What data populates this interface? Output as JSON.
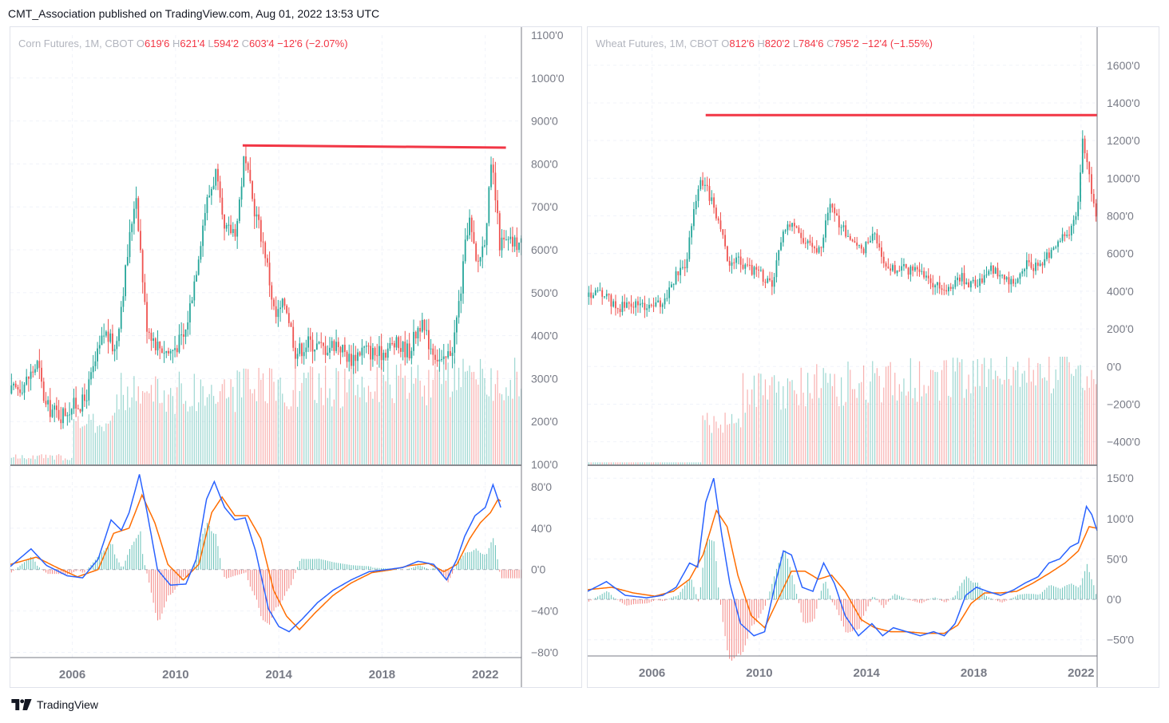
{
  "header": {
    "text": "CMT_Association published on TradingView.com, Aug 01, 2022 13:53 UTC"
  },
  "footer": {
    "brand": "TradingView"
  },
  "colors": {
    "up": "#26a69a",
    "down": "#ef5350",
    "resistance": "#f23645",
    "macd": "#2962ff",
    "signal": "#ff6d00",
    "grid": "#f0f3fa",
    "axis": "#787b86"
  },
  "chart_data": [
    {
      "type": "candlestick",
      "symbol": "Corn Futures, 1M, CBOT",
      "legend": {
        "title": "Corn Futures, 1M, CBOT",
        "o_label": "O",
        "o": "619'6",
        "h_label": "H",
        "h": "621'4",
        "l_label": "L",
        "l": "594'2",
        "c_label": "C",
        "c": "603'4",
        "change": "−12'6 (−2.07%)"
      },
      "price_axis_labels": [
        "1100'0",
        "1000'0",
        "900'0",
        "800'0",
        "700'0",
        "600'0",
        "500'0",
        "400'0",
        "300'0",
        "200'0",
        "100'0"
      ],
      "price_axis_values": [
        1100,
        1000,
        900,
        800,
        700,
        600,
        500,
        400,
        300,
        200,
        100
      ],
      "price_range": [
        100,
        1100
      ],
      "x_axis_labels": [
        "2006",
        "2010",
        "2014",
        "2018",
        "2022"
      ],
      "x_axis_values": [
        2006,
        2010,
        2014,
        2018,
        2022
      ],
      "x_range": [
        2003.6,
        2023.4
      ],
      "resistance_line": {
        "x_start": 2012.6,
        "x_end": 2022.8,
        "y_start": 843,
        "y_end": 838
      },
      "price_anchors": [
        [
          2003.6,
          265
        ],
        [
          2004.2,
          290
        ],
        [
          2004.7,
          335
        ],
        [
          2005.0,
          235
        ],
        [
          2005.6,
          215
        ],
        [
          2006.0,
          235
        ],
        [
          2006.5,
          245
        ],
        [
          2006.9,
          330
        ],
        [
          2007.3,
          410
        ],
        [
          2007.7,
          365
        ],
        [
          2008.1,
          550
        ],
        [
          2008.5,
          740
        ],
        [
          2008.9,
          430
        ],
        [
          2009.3,
          380
        ],
        [
          2009.8,
          360
        ],
        [
          2010.4,
          400
        ],
        [
          2010.8,
          540
        ],
        [
          2011.2,
          700
        ],
        [
          2011.6,
          780
        ],
        [
          2011.9,
          640
        ],
        [
          2012.4,
          650
        ],
        [
          2012.7,
          815
        ],
        [
          2013.0,
          720
        ],
        [
          2013.5,
          600
        ],
        [
          2013.9,
          440
        ],
        [
          2014.3,
          480
        ],
        [
          2014.7,
          360
        ],
        [
          2015.2,
          385
        ],
        [
          2015.8,
          370
        ],
        [
          2016.3,
          385
        ],
        [
          2016.8,
          345
        ],
        [
          2017.3,
          370
        ],
        [
          2017.9,
          355
        ],
        [
          2018.5,
          380
        ],
        [
          2019.1,
          365
        ],
        [
          2019.5,
          430
        ],
        [
          2019.9,
          380
        ],
        [
          2020.4,
          330
        ],
        [
          2020.8,
          380
        ],
        [
          2021.1,
          510
        ],
        [
          2021.4,
          680
        ],
        [
          2021.7,
          560
        ],
        [
          2022.0,
          620
        ],
        [
          2022.3,
          800
        ],
        [
          2022.6,
          615
        ]
      ],
      "oscillator": {
        "axis_labels": [
          "80'0",
          "40'0",
          "0'0",
          "−40'0",
          "−80'0"
        ],
        "axis_values": [
          80,
          40,
          0,
          -40,
          -80
        ],
        "range": [
          -85,
          100
        ],
        "macd_anchors": [
          [
            2003.6,
            3
          ],
          [
            2004.4,
            20
          ],
          [
            2005.0,
            4
          ],
          [
            2005.8,
            -6
          ],
          [
            2006.4,
            -8
          ],
          [
            2007.0,
            10
          ],
          [
            2007.5,
            48
          ],
          [
            2007.9,
            38
          ],
          [
            2008.2,
            55
          ],
          [
            2008.6,
            92
          ],
          [
            2008.9,
            55
          ],
          [
            2009.3,
            0
          ],
          [
            2009.8,
            -15
          ],
          [
            2010.4,
            -14
          ],
          [
            2010.8,
            10
          ],
          [
            2011.2,
            68
          ],
          [
            2011.5,
            85
          ],
          [
            2011.9,
            60
          ],
          [
            2012.3,
            48
          ],
          [
            2012.7,
            50
          ],
          [
            2013.1,
            18
          ],
          [
            2013.6,
            -38
          ],
          [
            2014.0,
            -55
          ],
          [
            2014.4,
            -60
          ],
          [
            2014.9,
            -48
          ],
          [
            2015.5,
            -32
          ],
          [
            2016.1,
            -20
          ],
          [
            2016.8,
            -10
          ],
          [
            2017.5,
            -2
          ],
          [
            2018.2,
            0
          ],
          [
            2018.8,
            2
          ],
          [
            2019.4,
            8
          ],
          [
            2020.0,
            5
          ],
          [
            2020.5,
            -10
          ],
          [
            2020.9,
            10
          ],
          [
            2021.2,
            32
          ],
          [
            2021.6,
            52
          ],
          [
            2022.0,
            60
          ],
          [
            2022.3,
            82
          ],
          [
            2022.6,
            60
          ]
        ],
        "signal_anchors": [
          [
            2003.6,
            5
          ],
          [
            2004.6,
            12
          ],
          [
            2005.4,
            2
          ],
          [
            2006.2,
            -7
          ],
          [
            2007.0,
            0
          ],
          [
            2007.6,
            35
          ],
          [
            2008.2,
            40
          ],
          [
            2008.7,
            72
          ],
          [
            2009.2,
            45
          ],
          [
            2009.7,
            5
          ],
          [
            2010.3,
            -10
          ],
          [
            2010.9,
            5
          ],
          [
            2011.4,
            55
          ],
          [
            2011.8,
            70
          ],
          [
            2012.3,
            52
          ],
          [
            2012.8,
            52
          ],
          [
            2013.3,
            30
          ],
          [
            2013.8,
            -20
          ],
          [
            2014.3,
            -45
          ],
          [
            2014.8,
            -58
          ],
          [
            2015.4,
            -42
          ],
          [
            2016.1,
            -25
          ],
          [
            2016.8,
            -13
          ],
          [
            2017.6,
            -3
          ],
          [
            2018.4,
            0
          ],
          [
            2019.1,
            4
          ],
          [
            2019.8,
            6
          ],
          [
            2020.4,
            -2
          ],
          [
            2020.9,
            5
          ],
          [
            2021.4,
            30
          ],
          [
            2021.8,
            45
          ],
          [
            2022.2,
            55
          ],
          [
            2022.5,
            68
          ],
          [
            2022.6,
            66
          ]
        ]
      }
    },
    {
      "type": "candlestick",
      "symbol": "Wheat Futures, 1M, CBOT",
      "legend": {
        "title": "Wheat Futures, 1M, CBOT",
        "o_label": "O",
        "o": "812'6",
        "h_label": "H",
        "h": "820'2",
        "l_label": "L",
        "l": "784'6",
        "c_label": "C",
        "c": "795'2",
        "change": "−12'4 (−1.55%)"
      },
      "price_axis_labels": [
        "1600'0",
        "1400'0",
        "1200'0",
        "1000'0",
        "800'0",
        "600'0",
        "400'0",
        "200'0",
        "0'0",
        "−200'0",
        "−400'0"
      ],
      "price_axis_values": [
        1600,
        1400,
        1200,
        1000,
        800,
        600,
        400,
        200,
        0,
        -200,
        -400
      ],
      "price_range": [
        -520,
        1760
      ],
      "x_axis_labels": [
        "2006",
        "2010",
        "2014",
        "2018",
        "2022"
      ],
      "x_axis_values": [
        2006,
        2010,
        2014,
        2018,
        2022
      ],
      "x_range": [
        2003.6,
        2022.6
      ],
      "resistance_line": {
        "x_start": 2008.0,
        "x_end": 2022.6,
        "y_start": 1335,
        "y_end": 1335
      },
      "price_anchors": [
        [
          2003.6,
          370
        ],
        [
          2004.2,
          390
        ],
        [
          2004.7,
          310
        ],
        [
          2005.3,
          330
        ],
        [
          2005.9,
          320
        ],
        [
          2006.4,
          330
        ],
        [
          2006.9,
          470
        ],
        [
          2007.3,
          550
        ],
        [
          2007.6,
          850
        ],
        [
          2007.9,
          1000
        ],
        [
          2008.2,
          900
        ],
        [
          2008.6,
          750
        ],
        [
          2008.9,
          520
        ],
        [
          2009.2,
          580
        ],
        [
          2009.6,
          520
        ],
        [
          2010.0,
          500
        ],
        [
          2010.5,
          430
        ],
        [
          2010.8,
          650
        ],
        [
          2011.1,
          760
        ],
        [
          2011.5,
          700
        ],
        [
          2011.9,
          650
        ],
        [
          2012.3,
          620
        ],
        [
          2012.7,
          870
        ],
        [
          2013.0,
          750
        ],
        [
          2013.4,
          700
        ],
        [
          2013.9,
          610
        ],
        [
          2014.3,
          700
        ],
        [
          2014.8,
          520
        ],
        [
          2015.3,
          520
        ],
        [
          2015.9,
          500
        ],
        [
          2016.4,
          470
        ],
        [
          2016.8,
          400
        ],
        [
          2017.2,
          440
        ],
        [
          2017.6,
          470
        ],
        [
          2018.1,
          430
        ],
        [
          2018.6,
          520
        ],
        [
          2019.0,
          480
        ],
        [
          2019.5,
          440
        ],
        [
          2019.9,
          540
        ],
        [
          2020.4,
          520
        ],
        [
          2020.8,
          590
        ],
        [
          2021.2,
          650
        ],
        [
          2021.6,
          720
        ],
        [
          2021.9,
          800
        ],
        [
          2022.1,
          1220
        ],
        [
          2022.3,
          1050
        ],
        [
          2022.6,
          795
        ]
      ],
      "oscillator": {
        "axis_labels": [
          "150'0",
          "100'0",
          "50'0",
          "0'0",
          "−50'0"
        ],
        "axis_values": [
          150,
          100,
          50,
          0,
          -50
        ],
        "range": [
          -70,
          165
        ],
        "macd_anchors": [
          [
            2003.6,
            10
          ],
          [
            2004.3,
            22
          ],
          [
            2005.0,
            5
          ],
          [
            2005.8,
            2
          ],
          [
            2006.4,
            5
          ],
          [
            2006.9,
            15
          ],
          [
            2007.4,
            45
          ],
          [
            2007.7,
            40
          ],
          [
            2008.0,
            120
          ],
          [
            2008.3,
            150
          ],
          [
            2008.6,
            80
          ],
          [
            2008.9,
            20
          ],
          [
            2009.3,
            -30
          ],
          [
            2009.8,
            -45
          ],
          [
            2010.2,
            -40
          ],
          [
            2010.6,
            20
          ],
          [
            2010.9,
            60
          ],
          [
            2011.2,
            55
          ],
          [
            2011.6,
            15
          ],
          [
            2012.0,
            10
          ],
          [
            2012.4,
            45
          ],
          [
            2012.8,
            20
          ],
          [
            2013.2,
            -20
          ],
          [
            2013.7,
            -45
          ],
          [
            2014.2,
            -30
          ],
          [
            2014.6,
            -45
          ],
          [
            2015.0,
            -35
          ],
          [
            2015.5,
            -40
          ],
          [
            2016.0,
            -45
          ],
          [
            2016.5,
            -40
          ],
          [
            2016.9,
            -45
          ],
          [
            2017.3,
            -30
          ],
          [
            2017.7,
            5
          ],
          [
            2018.1,
            15
          ],
          [
            2018.5,
            10
          ],
          [
            2019.0,
            5
          ],
          [
            2019.5,
            12
          ],
          [
            2019.9,
            20
          ],
          [
            2020.4,
            28
          ],
          [
            2020.8,
            45
          ],
          [
            2021.2,
            50
          ],
          [
            2021.6,
            65
          ],
          [
            2021.9,
            70
          ],
          [
            2022.2,
            115
          ],
          [
            2022.4,
            105
          ],
          [
            2022.6,
            85
          ]
        ],
        "signal_anchors": [
          [
            2003.6,
            12
          ],
          [
            2004.5,
            15
          ],
          [
            2005.3,
            8
          ],
          [
            2006.1,
            4
          ],
          [
            2006.8,
            10
          ],
          [
            2007.4,
            25
          ],
          [
            2007.9,
            55
          ],
          [
            2008.4,
            110
          ],
          [
            2008.8,
            90
          ],
          [
            2009.2,
            30
          ],
          [
            2009.7,
            -20
          ],
          [
            2010.2,
            -35
          ],
          [
            2010.7,
            0
          ],
          [
            2011.2,
            35
          ],
          [
            2011.7,
            35
          ],
          [
            2012.2,
            25
          ],
          [
            2012.7,
            30
          ],
          [
            2013.2,
            10
          ],
          [
            2013.8,
            -25
          ],
          [
            2014.3,
            -35
          ],
          [
            2014.9,
            -40
          ],
          [
            2015.5,
            -40
          ],
          [
            2016.2,
            -42
          ],
          [
            2016.9,
            -42
          ],
          [
            2017.4,
            -32
          ],
          [
            2017.9,
            -5
          ],
          [
            2018.4,
            8
          ],
          [
            2019.0,
            8
          ],
          [
            2019.6,
            10
          ],
          [
            2020.2,
            20
          ],
          [
            2020.8,
            32
          ],
          [
            2021.4,
            45
          ],
          [
            2021.9,
            60
          ],
          [
            2022.3,
            90
          ],
          [
            2022.6,
            88
          ]
        ]
      }
    }
  ]
}
